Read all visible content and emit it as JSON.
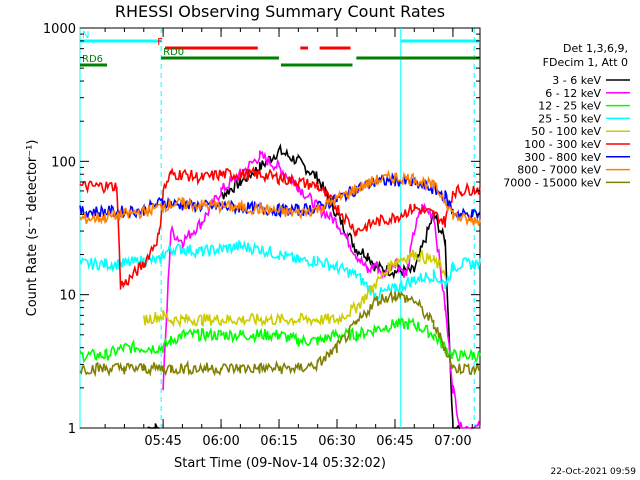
{
  "chart_data": {
    "type": "line",
    "title": "RHESSI Observing Summary Count Rates",
    "xlabel": "Start Time (09-Nov-14 05:32:02)",
    "ylabel": "Count Rate (s⁻¹ detector⁻¹)",
    "yscale": "log",
    "ylim": [
      1,
      1000
    ],
    "xlim_minutes": [
      -6.5,
      97
    ],
    "x_tick_minutes": [
      15,
      30,
      45,
      60,
      75,
      90
    ],
    "x_tick_labels": [
      "05:45",
      "06:00",
      "06:15",
      "06:30",
      "06:45",
      "07:00"
    ],
    "y_tick_values": [
      1,
      10,
      100,
      1000
    ],
    "y_tick_labels": [
      "1",
      "10",
      "100",
      "1000"
    ],
    "legend_header": [
      "Det 1,3,6,9,",
      "FDecim 1, Att 0"
    ],
    "legend_position": "right",
    "timestamp": "22-Oct-2021 09:59",
    "series": [
      {
        "name": "3 - 6 keV",
        "color": "#000000",
        "x": [
          -6.5,
          0,
          5,
          10,
          11,
          13,
          14,
          15,
          16,
          17,
          20,
          25,
          30,
          35,
          40,
          45,
          50,
          55,
          60,
          65,
          68,
          70,
          75,
          80,
          85,
          88,
          90,
          92,
          95,
          97
        ],
        "y": [
          null,
          null,
          null,
          null,
          1,
          1,
          1,
          null,
          null,
          null,
          null,
          null,
          55,
          70,
          90,
          120,
          100,
          75,
          40,
          22,
          20,
          16,
          15,
          15,
          40,
          25,
          1,
          1,
          null,
          null
        ]
      },
      {
        "name": "6 - 12 keV",
        "color": "#ff00ff",
        "x": [
          15,
          17,
          20,
          25,
          30,
          35,
          40,
          45,
          50,
          55,
          60,
          65,
          68,
          70,
          72,
          75,
          78,
          80,
          82,
          85,
          88,
          90,
          92,
          95,
          97
        ],
        "y": [
          2,
          30,
          25,
          35,
          60,
          80,
          110,
          90,
          65,
          45,
          35,
          20,
          15,
          17,
          14,
          18,
          14,
          30,
          45,
          40,
          8,
          2,
          1,
          1,
          1
        ]
      },
      {
        "name": "12 - 25 keV",
        "color": "#00ff00",
        "x": [
          -6.5,
          0,
          5,
          10,
          15,
          17,
          20,
          25,
          30,
          35,
          40,
          45,
          50,
          55,
          60,
          65,
          70,
          75,
          80,
          85,
          88,
          90,
          92,
          95,
          97
        ],
        "y": [
          3.5,
          3.5,
          4,
          4,
          4,
          4.5,
          5,
          5,
          5,
          5,
          5,
          5,
          4.5,
          4.5,
          5,
          5,
          5.5,
          6,
          6,
          5,
          4,
          3.5,
          3.5,
          3.5,
          3.5
        ]
      },
      {
        "name": "25 - 50 keV",
        "color": "#00ffff",
        "x": [
          -6.5,
          0,
          5,
          10,
          14,
          15,
          17,
          20,
          25,
          30,
          35,
          40,
          45,
          50,
          55,
          60,
          65,
          70,
          75,
          80,
          85,
          88,
          90,
          92,
          95,
          97
        ],
        "y": [
          17,
          17,
          17,
          18,
          18,
          20,
          22,
          22,
          21,
          22,
          23,
          22,
          20,
          18,
          18,
          16,
          14,
          10,
          11,
          13,
          14,
          12,
          16,
          17,
          17,
          17
        ]
      },
      {
        "name": "50 - 100 keV",
        "color": "#cccc00",
        "x": [
          -6.5,
          0,
          5,
          10,
          15,
          17,
          20,
          25,
          30,
          35,
          40,
          45,
          50,
          55,
          60,
          65,
          70,
          75,
          80,
          85,
          88,
          90,
          92,
          95,
          97
        ],
        "y": [
          null,
          null,
          null,
          6.5,
          7,
          6.5,
          6.5,
          6.5,
          6.5,
          6.5,
          6.5,
          6.5,
          6.5,
          6.5,
          6.5,
          8,
          12,
          18,
          20,
          18,
          15,
          null,
          null,
          null,
          null
        ]
      },
      {
        "name": "100 - 300 keV",
        "color": "#ff0000",
        "x": [
          -6.5,
          0,
          3,
          4,
          5,
          10,
          14,
          15,
          17,
          20,
          25,
          30,
          35,
          40,
          45,
          50,
          55,
          60,
          65,
          70,
          75,
          80,
          85,
          88,
          90,
          92,
          95,
          97
        ],
        "y": [
          65,
          65,
          65,
          12,
          12,
          17,
          28,
          60,
          80,
          80,
          75,
          80,
          80,
          80,
          75,
          70,
          65,
          45,
          30,
          35,
          38,
          45,
          40,
          35,
          60,
          60,
          62,
          62
        ]
      },
      {
        "name": "300 - 800 keV",
        "color": "#0000ff",
        "x": [
          -6.5,
          0,
          5,
          10,
          15,
          17,
          20,
          25,
          30,
          35,
          40,
          45,
          50,
          55,
          60,
          65,
          70,
          75,
          80,
          85,
          88,
          90,
          92,
          95,
          97
        ],
        "y": [
          42,
          42,
          42,
          43,
          50,
          48,
          47,
          46,
          46,
          45,
          44,
          43,
          43,
          45,
          52,
          62,
          70,
          72,
          68,
          62,
          55,
          42,
          40,
          40,
          40
        ]
      },
      {
        "name": "800 - 7000 keV",
        "color": "#ff8000",
        "x": [
          -6.5,
          0,
          5,
          10,
          15,
          17,
          20,
          25,
          30,
          35,
          40,
          45,
          50,
          55,
          60,
          65,
          70,
          75,
          80,
          85,
          88,
          90,
          92,
          95,
          97
        ],
        "y": [
          37,
          38,
          40,
          42,
          46,
          48,
          48,
          47,
          46,
          45,
          44,
          42,
          41,
          44,
          52,
          62,
          72,
          76,
          74,
          65,
          52,
          40,
          37,
          36,
          36
        ]
      },
      {
        "name": "7000 - 15000 keV",
        "color": "#808000",
        "x": [
          -6.5,
          0,
          5,
          10,
          15,
          17,
          20,
          25,
          30,
          35,
          40,
          45,
          50,
          55,
          60,
          65,
          70,
          75,
          80,
          85,
          88,
          90,
          92,
          95,
          97
        ],
        "y": [
          2.8,
          2.8,
          2.8,
          2.8,
          2.8,
          2.8,
          2.8,
          2.8,
          2.8,
          2.8,
          2.8,
          2.8,
          2.8,
          3,
          4,
          6,
          9,
          10,
          9,
          6,
          4,
          2.8,
          2.8,
          2.8,
          2.8
        ]
      }
    ],
    "flag_bars": [
      {
        "label": "N",
        "color": "#00ffff",
        "segments": [
          [
            -6.5,
            14.5
          ],
          [
            76.5,
            97
          ]
        ]
      },
      {
        "label": "F",
        "color": "#ff0000",
        "segments": [
          [
            15.5,
            39.5
          ],
          [
            50.5,
            52.5
          ],
          [
            55.5,
            63.5
          ]
        ]
      },
      {
        "label": "RD0",
        "color": "#008000",
        "segments": [
          [
            14.5,
            45
          ],
          [
            65,
            97
          ]
        ]
      },
      {
        "label": "RD6",
        "color": "#008000",
        "segments": [
          [
            -6.5,
            0.5
          ],
          [
            45.5,
            64
          ]
        ]
      }
    ],
    "vertical_markers": [
      {
        "x": -6.5,
        "style": "solid"
      },
      {
        "x": 14.5,
        "style": "dashed"
      },
      {
        "x": 76.5,
        "style": "solid"
      },
      {
        "x": 95.5,
        "style": "dashed"
      }
    ]
  }
}
